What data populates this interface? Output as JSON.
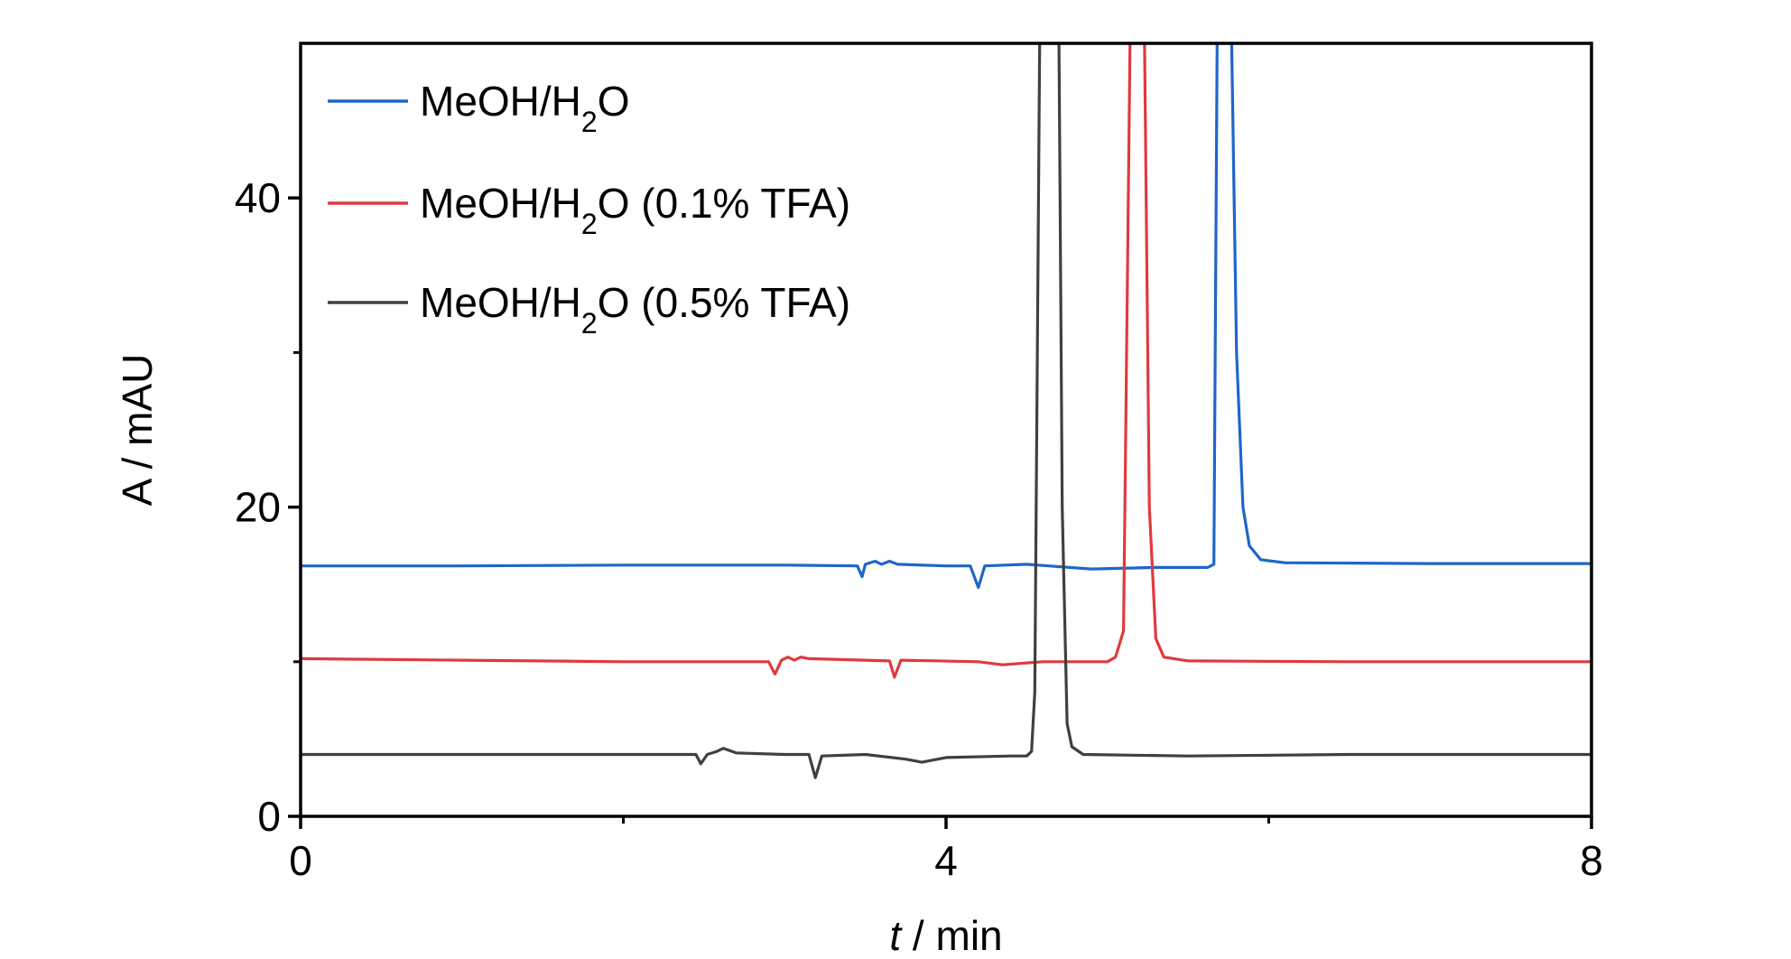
{
  "chart_data": {
    "type": "line",
    "title": "",
    "xlabel": "t / min",
    "xlabel_italic_part": "t",
    "xlabel_rest": " / min",
    "ylabel": "A / mAU",
    "xlim": [
      0,
      8
    ],
    "ylim": [
      0,
      50
    ],
    "xticks": [
      0,
      4,
      8
    ],
    "xtick_labels": [
      "0",
      "4",
      "8"
    ],
    "xminor": [
      2,
      6
    ],
    "yticks": [
      0,
      20,
      40
    ],
    "ytick_labels": [
      "0",
      "20",
      "40"
    ],
    "yminor": [
      10,
      30
    ],
    "grid": false,
    "legend_position": "top-left",
    "series": [
      {
        "name": "MeOH/H2O",
        "legend_main": "MeOH/H",
        "legend_sub": "2",
        "legend_tail": "O",
        "color": "#1f66c9",
        "points": [
          [
            0,
            16.2
          ],
          [
            1.0,
            16.2
          ],
          [
            2.0,
            16.25
          ],
          [
            3.0,
            16.25
          ],
          [
            3.45,
            16.2
          ],
          [
            3.48,
            15.5
          ],
          [
            3.5,
            16.3
          ],
          [
            3.56,
            16.5
          ],
          [
            3.6,
            16.3
          ],
          [
            3.65,
            16.5
          ],
          [
            3.7,
            16.3
          ],
          [
            4.0,
            16.2
          ],
          [
            4.15,
            16.2
          ],
          [
            4.2,
            14.8
          ],
          [
            4.24,
            16.2
          ],
          [
            4.5,
            16.3
          ],
          [
            4.9,
            16.0
          ],
          [
            5.3,
            16.1
          ],
          [
            5.62,
            16.1
          ],
          [
            5.66,
            16.3
          ],
          [
            5.68,
            50
          ],
          [
            5.77,
            50
          ],
          [
            5.8,
            30
          ],
          [
            5.84,
            20
          ],
          [
            5.88,
            17.5
          ],
          [
            5.95,
            16.6
          ],
          [
            6.1,
            16.4
          ],
          [
            7.0,
            16.35
          ],
          [
            8.0,
            16.35
          ]
        ]
      },
      {
        "name": "MeOH/H2O (0.1% TFA)",
        "legend_main": "MeOH/H",
        "legend_sub": "2",
        "legend_tail": "O (0.1% TFA)",
        "color": "#e03a3e",
        "points": [
          [
            0,
            10.2
          ],
          [
            1.0,
            10.1
          ],
          [
            2.0,
            10.0
          ],
          [
            2.9,
            10.0
          ],
          [
            2.94,
            9.2
          ],
          [
            2.98,
            10.1
          ],
          [
            3.02,
            10.3
          ],
          [
            3.06,
            10.1
          ],
          [
            3.1,
            10.3
          ],
          [
            3.15,
            10.2
          ],
          [
            3.5,
            10.1
          ],
          [
            3.65,
            10.05
          ],
          [
            3.68,
            9.0
          ],
          [
            3.72,
            10.1
          ],
          [
            4.2,
            10.0
          ],
          [
            4.35,
            9.8
          ],
          [
            4.6,
            10.0
          ],
          [
            5.0,
            10.0
          ],
          [
            5.05,
            10.3
          ],
          [
            5.1,
            12.0
          ],
          [
            5.14,
            50
          ],
          [
            5.23,
            50
          ],
          [
            5.26,
            20
          ],
          [
            5.3,
            11.5
          ],
          [
            5.35,
            10.3
          ],
          [
            5.5,
            10.05
          ],
          [
            6.5,
            10.0
          ],
          [
            8.0,
            10.0
          ]
        ]
      },
      {
        "name": "MeOH/H2O (0.5% TFA)",
        "legend_main": "MeOH/H",
        "legend_sub": "2",
        "legend_tail": "O (0.5% TFA)",
        "color": "#404040",
        "points": [
          [
            0,
            4.0
          ],
          [
            1.0,
            4.0
          ],
          [
            2.0,
            4.0
          ],
          [
            2.45,
            4.0
          ],
          [
            2.48,
            3.4
          ],
          [
            2.52,
            4.0
          ],
          [
            2.58,
            4.2
          ],
          [
            2.62,
            4.4
          ],
          [
            2.7,
            4.1
          ],
          [
            3.0,
            4.0
          ],
          [
            3.15,
            4.0
          ],
          [
            3.19,
            2.5
          ],
          [
            3.23,
            3.9
          ],
          [
            3.5,
            4.0
          ],
          [
            3.75,
            3.7
          ],
          [
            3.85,
            3.5
          ],
          [
            4.0,
            3.8
          ],
          [
            4.4,
            3.9
          ],
          [
            4.5,
            3.9
          ],
          [
            4.53,
            4.2
          ],
          [
            4.55,
            8.0
          ],
          [
            4.58,
            50
          ],
          [
            4.7,
            50
          ],
          [
            4.72,
            20
          ],
          [
            4.75,
            6.0
          ],
          [
            4.78,
            4.5
          ],
          [
            4.85,
            4.0
          ],
          [
            5.5,
            3.9
          ],
          [
            6.5,
            4.0
          ],
          [
            8.0,
            4.0
          ]
        ]
      }
    ]
  }
}
